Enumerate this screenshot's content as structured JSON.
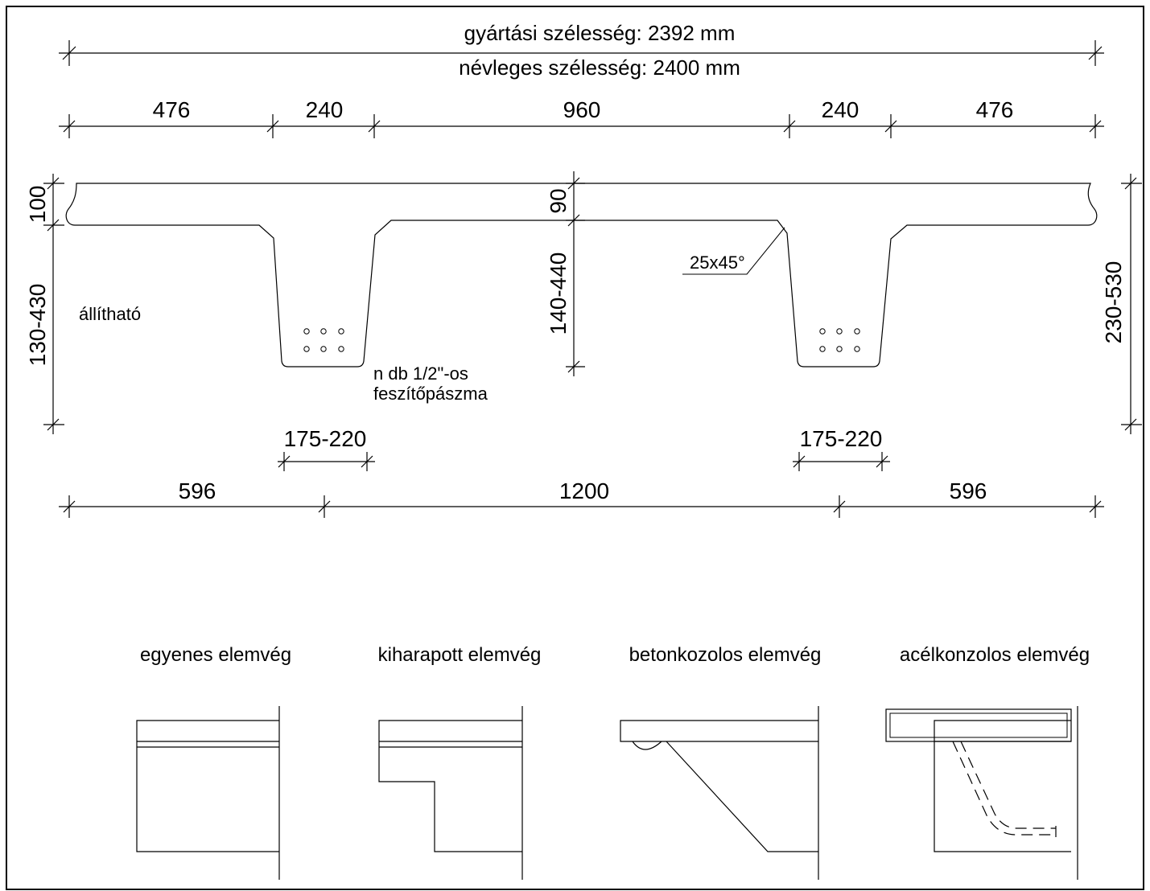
{
  "dimensions": {
    "production_width": "gyártási szélesség:  2392 mm",
    "nominal_width": "névleges szélesség:  2400 mm",
    "top_segments": [
      "476",
      "240",
      "960",
      "240",
      "476"
    ],
    "flange_thickness": "100",
    "overall_height": "230-530",
    "left_height": "130-430",
    "adjustable_label": "állítható",
    "center_flange": "90",
    "center_rib": "140-440",
    "chamfer": "25x45°",
    "tendon_note_line1": "n db 1/2\"-os",
    "tendon_note_line2": "feszítőpászma",
    "rib_width_left": "175-220",
    "rib_width_right": "175-220",
    "bottom_segments": [
      "596",
      "1200",
      "596"
    ]
  },
  "end_details": [
    {
      "label": "egyenes elemvég"
    },
    {
      "label": "kiharapott elemvég"
    },
    {
      "label": "betonkozolos elemvég"
    },
    {
      "label": "acélkonzolos elemvég"
    }
  ]
}
